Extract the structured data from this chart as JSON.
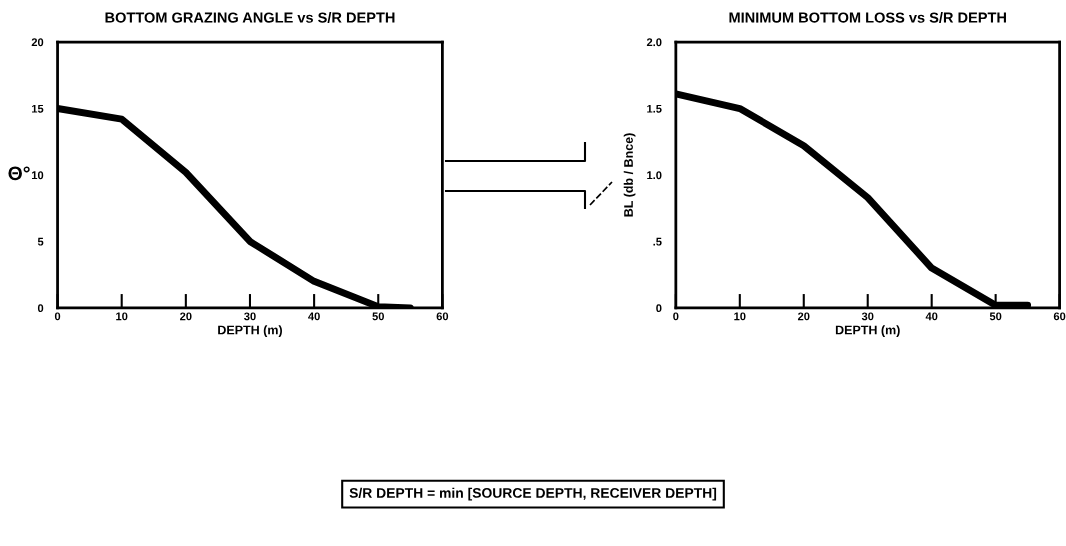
{
  "chart_data": [
    {
      "type": "line",
      "title": "BOTTOM GRAZING ANGLE vs S/R DEPTH",
      "xlabel": "DEPTH (m)",
      "ylabel": "Θ°",
      "x": [
        0,
        10,
        20,
        30,
        40,
        50,
        55
      ],
      "series": [
        {
          "color": "#000000",
          "values": [
            15,
            14.2,
            10.2,
            5,
            2,
            0.1,
            0
          ]
        }
      ],
      "xlim": [
        0,
        60
      ],
      "xticks": [
        0,
        10,
        20,
        30,
        40,
        50,
        60
      ],
      "ylim": [
        0,
        20
      ],
      "yticks": [
        0,
        5,
        10,
        15,
        20
      ],
      "annotations": [
        "S/R DEPTH = min [SOURCE DEPTH, RECEIVER DEPTH]"
      ]
    },
    {
      "type": "line",
      "title": "MINIMUM BOTTOM LOSS vs S/R DEPTH",
      "xlabel": "DEPTH (m)",
      "ylabel": "BL (db / Bnce)",
      "x": [
        0,
        10,
        20,
        30,
        40,
        50,
        55
      ],
      "series": [
        {
          "color": "#000000",
          "values": [
            1.61,
            1.5,
            1.22,
            0.83,
            0.3,
            0.02,
            0.02
          ]
        }
      ],
      "xlim": [
        0,
        60
      ],
      "xticks": [
        0,
        10,
        20,
        30,
        40,
        50,
        60
      ],
      "ylim": [
        0,
        2.0
      ],
      "yticks": [
        0,
        {
          "value": 0.5,
          "label": ".5"
        },
        {
          "value": 1.0,
          "label": "1.0"
        },
        {
          "value": 1.5,
          "label": "1.5"
        },
        {
          "value": 2.0,
          "label": "2.0"
        }
      ]
    }
  ]
}
